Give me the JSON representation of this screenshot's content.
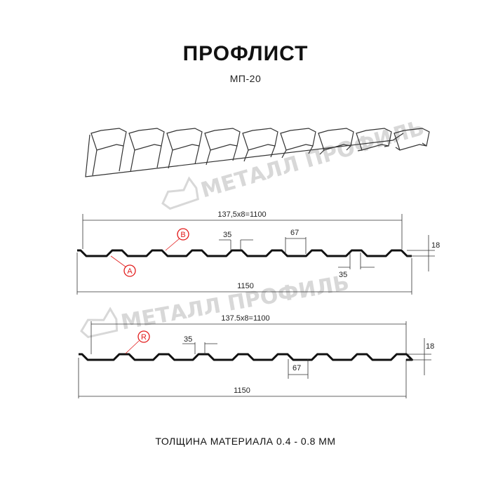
{
  "header": {
    "title": "ПРОФЛИСТ",
    "model": "МП-20"
  },
  "watermark": "МЕТАЛЛ ПРОФИЛЬ",
  "colors": {
    "profile": "#111111",
    "marker": "#e21b1b",
    "watermark": "#d8d8d8"
  },
  "profile_a": {
    "pitch_label": "137,5x8=1100",
    "total_label": "1150",
    "top_width_label": "35",
    "bottom_width_label": "35",
    "rib_label": "67",
    "height_label": "18",
    "marker_a": "A",
    "marker_b": "B"
  },
  "profile_r": {
    "pitch_label": "137.5x8=1100",
    "total_label": "1150",
    "top_width_label": "35",
    "rib_label": "67",
    "height_label": "18",
    "marker_r": "R"
  },
  "footer": {
    "thickness": "ТОЛЩИНА МАТЕРИАЛА 0.4 - 0.8 ММ"
  }
}
